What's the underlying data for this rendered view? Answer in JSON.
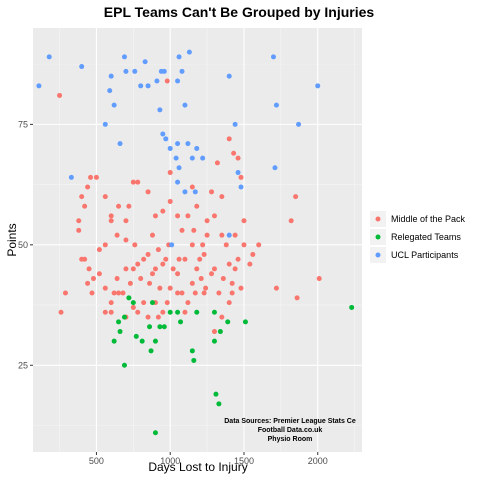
{
  "chart_data": {
    "type": "scatter",
    "title": "EPL Teams Can't Be Grouped by Injuries",
    "xlabel": "Days Lost to Injury",
    "ylabel": "Points",
    "xlim": [
      70,
      2300
    ],
    "ylim": [
      7,
      95
    ],
    "xticks": [
      500,
      1000,
      1500,
      2000
    ],
    "yticks": [
      25,
      50,
      75
    ],
    "grid": true,
    "legend_position": "right",
    "annotation": [
      "Data Sources: Premier League Stats Ce",
      "Football Data.co.uk",
      "Physio Room"
    ],
    "series": [
      {
        "name": "Middle of the Pack",
        "color": "#F8766D",
        "points": [
          [
            250,
            81
          ],
          [
            980,
            84
          ],
          [
            1000,
            65
          ],
          [
            1150,
            62
          ],
          [
            1320,
            67
          ],
          [
            1400,
            72
          ],
          [
            1430,
            69
          ],
          [
            1460,
            68
          ],
          [
            1480,
            64
          ],
          [
            1350,
            60
          ],
          [
            1280,
            61
          ],
          [
            1850,
            60
          ],
          [
            1820,
            55
          ],
          [
            1860,
            39
          ],
          [
            1720,
            41
          ],
          [
            2010,
            43
          ],
          [
            1560,
            48
          ],
          [
            1600,
            50
          ],
          [
            1500,
            55
          ],
          [
            1440,
            52
          ],
          [
            1460,
            47
          ],
          [
            1400,
            46
          ],
          [
            1380,
            50
          ],
          [
            1440,
            45
          ],
          [
            1420,
            42
          ],
          [
            1400,
            38
          ],
          [
            1350,
            35
          ],
          [
            1300,
            32
          ],
          [
            1330,
            40
          ],
          [
            1230,
            48
          ],
          [
            1200,
            47
          ],
          [
            1250,
            52
          ],
          [
            1150,
            50
          ],
          [
            1180,
            45
          ],
          [
            1210,
            43
          ],
          [
            1230,
            40
          ],
          [
            1170,
            40
          ],
          [
            1120,
            38
          ],
          [
            1100,
            36
          ],
          [
            1080,
            40
          ],
          [
            1050,
            44
          ],
          [
            1060,
            47
          ],
          [
            1020,
            45
          ],
          [
            990,
            50
          ],
          [
            970,
            47
          ],
          [
            950,
            46
          ],
          [
            900,
            45
          ],
          [
            930,
            41
          ],
          [
            880,
            44
          ],
          [
            860,
            42
          ],
          [
            820,
            47
          ],
          [
            800,
            43
          ],
          [
            780,
            46
          ],
          [
            750,
            45
          ],
          [
            730,
            42
          ],
          [
            700,
            45
          ],
          [
            680,
            40
          ],
          [
            640,
            43
          ],
          [
            620,
            40
          ],
          [
            600,
            38
          ],
          [
            560,
            41
          ],
          [
            520,
            44
          ],
          [
            480,
            43
          ],
          [
            470,
            40
          ],
          [
            450,
            45
          ],
          [
            440,
            42
          ],
          [
            420,
            47
          ],
          [
            400,
            47
          ],
          [
            380,
            53
          ],
          [
            380,
            55
          ],
          [
            400,
            60
          ],
          [
            420,
            58
          ],
          [
            440,
            62
          ],
          [
            460,
            64
          ],
          [
            500,
            64
          ],
          [
            560,
            60
          ],
          [
            600,
            56
          ],
          [
            650,
            58
          ],
          [
            700,
            55
          ],
          [
            720,
            58
          ],
          [
            750,
            63
          ],
          [
            780,
            63
          ],
          [
            850,
            61
          ],
          [
            900,
            56
          ],
          [
            950,
            57
          ],
          [
            1000,
            59
          ],
          [
            1050,
            56
          ],
          [
            1080,
            53
          ],
          [
            1120,
            56
          ],
          [
            1180,
            58
          ],
          [
            1250,
            55
          ],
          [
            1300,
            56
          ],
          [
            1350,
            52
          ],
          [
            1280,
            44
          ],
          [
            1240,
            41
          ],
          [
            1150,
            42
          ],
          [
            1050,
            40
          ],
          [
            1000,
            41
          ],
          [
            980,
            38
          ],
          [
            950,
            36
          ],
          [
            920,
            35
          ],
          [
            900,
            38
          ],
          [
            850,
            35
          ],
          [
            820,
            38
          ],
          [
            780,
            36
          ],
          [
            750,
            37
          ],
          [
            700,
            35
          ],
          [
            650,
            40
          ],
          [
            600,
            36
          ],
          [
            560,
            36
          ],
          [
            260,
            36
          ],
          [
            290,
            40
          ],
          [
            760,
            50
          ],
          [
            700,
            51
          ],
          [
            640,
            52
          ],
          [
            600,
            55
          ],
          [
            560,
            50
          ],
          [
            520,
            49
          ],
          [
            880,
            52
          ],
          [
            920,
            49
          ],
          [
            1100,
            47
          ],
          [
            1160,
            53
          ],
          [
            1220,
            50
          ],
          [
            1300,
            45
          ],
          [
            1360,
            43
          ],
          [
            1420,
            40
          ],
          [
            1480,
            41
          ],
          [
            1540,
            46
          ],
          [
            1500,
            50
          ],
          [
            850,
            48
          ]
        ]
      },
      {
        "name": "Relegated Teams",
        "color": "#00BA38",
        "points": [
          [
            2230,
            37
          ],
          [
            1300,
            36
          ],
          [
            1390,
            34
          ],
          [
            1510,
            34
          ],
          [
            1340,
            32
          ],
          [
            1300,
            30
          ],
          [
            1310,
            19
          ],
          [
            1330,
            17
          ],
          [
            1150,
            28
          ],
          [
            1160,
            26
          ],
          [
            1070,
            34
          ],
          [
            1050,
            36
          ],
          [
            1000,
            36
          ],
          [
            960,
            33
          ],
          [
            930,
            33
          ],
          [
            900,
            30
          ],
          [
            870,
            28
          ],
          [
            860,
            33
          ],
          [
            810,
            30
          ],
          [
            770,
            31
          ],
          [
            720,
            39
          ],
          [
            690,
            35
          ],
          [
            660,
            32
          ],
          [
            650,
            34
          ],
          [
            620,
            30
          ],
          [
            690,
            25
          ],
          [
            880,
            38
          ],
          [
            900,
            11
          ],
          [
            1180,
            36
          ],
          [
            750,
            38
          ]
        ]
      },
      {
        "name": "UCL Participants",
        "color": "#619CFF",
        "points": [
          [
            110,
            83
          ],
          [
            180,
            89
          ],
          [
            400,
            87
          ],
          [
            590,
            82
          ],
          [
            560,
            75
          ],
          [
            620,
            79
          ],
          [
            600,
            85
          ],
          [
            660,
            71
          ],
          [
            690,
            89
          ],
          [
            700,
            86
          ],
          [
            760,
            86
          ],
          [
            800,
            83
          ],
          [
            830,
            88
          ],
          [
            850,
            83
          ],
          [
            910,
            84
          ],
          [
            940,
            86
          ],
          [
            960,
            86
          ],
          [
            930,
            78
          ],
          [
            950,
            73
          ],
          [
            970,
            72
          ],
          [
            1050,
            84
          ],
          [
            1060,
            89
          ],
          [
            1080,
            86
          ],
          [
            1130,
            90
          ],
          [
            1100,
            79
          ],
          [
            1050,
            71
          ],
          [
            1000,
            70
          ],
          [
            1040,
            68
          ],
          [
            1060,
            66
          ],
          [
            1120,
            71
          ],
          [
            1150,
            68
          ],
          [
            1180,
            70
          ],
          [
            1220,
            68
          ],
          [
            1050,
            63
          ],
          [
            1100,
            61
          ],
          [
            1170,
            61
          ],
          [
            1400,
            85
          ],
          [
            1440,
            75
          ],
          [
            1460,
            65
          ],
          [
            1480,
            62
          ],
          [
            1700,
            89
          ],
          [
            1720,
            79
          ],
          [
            1710,
            66
          ],
          [
            1870,
            75
          ],
          [
            2000,
            83
          ],
          [
            1010,
            50
          ],
          [
            1400,
            52
          ],
          [
            330,
            64
          ]
        ]
      }
    ]
  }
}
